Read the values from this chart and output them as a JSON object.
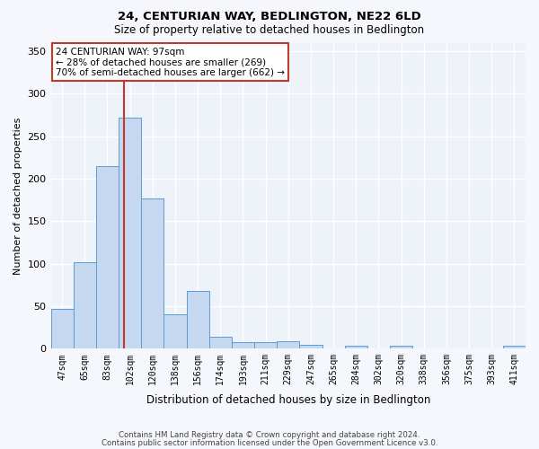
{
  "title1": "24, CENTURIAN WAY, BEDLINGTON, NE22 6LD",
  "title2": "Size of property relative to detached houses in Bedlington",
  "xlabel": "Distribution of detached houses by size in Bedlington",
  "ylabel": "Number of detached properties",
  "categories": [
    "47sqm",
    "65sqm",
    "83sqm",
    "102sqm",
    "120sqm",
    "138sqm",
    "156sqm",
    "174sqm",
    "193sqm",
    "211sqm",
    "229sqm",
    "247sqm",
    "265sqm",
    "284sqm",
    "302sqm",
    "320sqm",
    "338sqm",
    "356sqm",
    "375sqm",
    "393sqm",
    "411sqm"
  ],
  "values": [
    47,
    102,
    215,
    272,
    177,
    40,
    68,
    14,
    8,
    8,
    9,
    4,
    0,
    3,
    0,
    3,
    0,
    0,
    0,
    0,
    3
  ],
  "bar_color": "#c5d8f0",
  "bar_edge_color": "#5b9bd5",
  "highlight_line_color": "#c0392b",
  "annotation_box_color": "#ffffff",
  "annotation_box_edge": "#c0392b",
  "annotation_lines": [
    "24 CENTURIAN WAY: 97sqm",
    "← 28% of detached houses are smaller (269)",
    "70% of semi-detached houses are larger (662) →"
  ],
  "ylim": [
    0,
    360
  ],
  "yticks": [
    0,
    50,
    100,
    150,
    200,
    250,
    300,
    350
  ],
  "background_color": "#eef2f9",
  "grid_color": "#ffffff",
  "fig_background": "#f5f7fc",
  "footer1": "Contains HM Land Registry data © Crown copyright and database right 2024.",
  "footer2": "Contains public sector information licensed under the Open Government Licence v3.0."
}
